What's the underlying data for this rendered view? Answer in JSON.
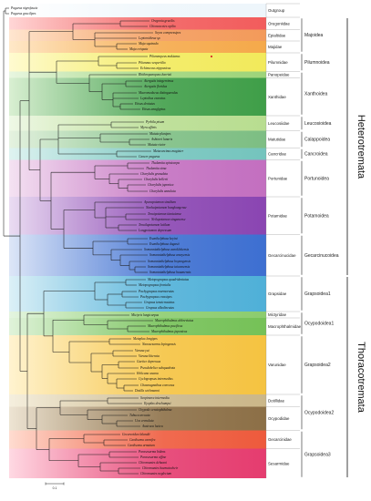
{
  "sections": [
    {
      "label": "Heterotremata"
    },
    {
      "label": "Thoracotremata"
    }
  ],
  "superfamilies": [
    {
      "label": "Majoidea"
    },
    {
      "label": "Pilumnoidea"
    },
    {
      "label": "Xanthoidea"
    },
    {
      "label": "Leucosioidea"
    },
    {
      "label": "Calappoidea"
    },
    {
      "label": "Cancroidea"
    },
    {
      "label": "Portunoidea"
    },
    {
      "label": "Potamoidea"
    },
    {
      "label": "Gecarcinucoidea"
    },
    {
      "label": "Grapsoidea1"
    },
    {
      "label": "Ocypodoidea1"
    },
    {
      "label": "Grapsoidea2"
    },
    {
      "label": "Ocypodoidea2"
    },
    {
      "label": "Grapsoidea3"
    }
  ],
  "families": [
    {
      "label": "Outgroup"
    },
    {
      "label": "Oregoniidae"
    },
    {
      "label": "Epialtidae"
    },
    {
      "label": "Majidae"
    },
    {
      "label": "Pilumnidae"
    },
    {
      "label": "Panopeidae"
    },
    {
      "label": "Xanthidae"
    },
    {
      "label": "Leucosiidae"
    },
    {
      "label": "Matutidae"
    },
    {
      "label": "Cancridae"
    },
    {
      "label": "Portunidae"
    },
    {
      "label": "Potamidae"
    },
    {
      "label": "Gecarcinucidae"
    },
    {
      "label": "Grapsidae"
    },
    {
      "label": "Mictyridae"
    },
    {
      "label": "Macrophthalmidae"
    },
    {
      "label": "Varunidae"
    },
    {
      "label": "Dotillidae"
    },
    {
      "label": "Ocypodidae"
    },
    {
      "label": "Gecarcinidae"
    },
    {
      "label": "Sesarmidae"
    }
  ],
  "taxa": [
    {
      "label": "Pagurus nigrofascia"
    },
    {
      "label": "Pagurus gracilipes"
    },
    {
      "label": "Oregonia gracilis"
    },
    {
      "label": "Chionoecetes opilio"
    },
    {
      "label": "Scyra compressipes"
    },
    {
      "label": "Leptomithrax sp."
    },
    {
      "label": "Maja squinado"
    },
    {
      "label": "Maja crispata"
    },
    {
      "label": "Pilumnopeus makianus"
    },
    {
      "label": "Pilumnus vespertilio"
    },
    {
      "label": "Echinoecus nipponicus"
    },
    {
      "label": "Rhithropanopeus harrisii"
    },
    {
      "label": "Atergatis integerrimus"
    },
    {
      "label": "Atergatis floridus"
    },
    {
      "label": "Macromedaeus distinguendus"
    },
    {
      "label": "Leptodius exaratus"
    },
    {
      "label": "Etisus dentatus"
    },
    {
      "label": "Etisus anaglyptus"
    },
    {
      "label": "Pyrhila pisum"
    },
    {
      "label": "Myra affinis"
    },
    {
      "label": "Matuta planipes"
    },
    {
      "label": "Ashtoret lunaris"
    },
    {
      "label": "Matuta victor"
    },
    {
      "label": "Metacarcinus magister"
    },
    {
      "label": "Cancer pagurus"
    },
    {
      "label": "Thalamita spinicarpa"
    },
    {
      "label": "Thalamita sima"
    },
    {
      "label": "Charybdis granulata"
    },
    {
      "label": "Charybdis bellerii"
    },
    {
      "label": "Charybdis japonica"
    },
    {
      "label": "Charybdis annulata"
    },
    {
      "label": "Aparapotamon similium"
    },
    {
      "label": "Nanhaipotamon hongkongense"
    },
    {
      "label": "Tenuipotamon tiantaiense"
    },
    {
      "label": "Neilupotamon xinganense"
    },
    {
      "label": "Tenuilapotamon latilum"
    },
    {
      "label": "Longpotamon depressum"
    },
    {
      "label": "Esanthelphusa keyini"
    },
    {
      "label": "Esanthelphusa dugasti"
    },
    {
      "label": "Somanniathelphusa zanoklokensis"
    },
    {
      "label": "Somanniathelphusa amoyensis"
    },
    {
      "label": "Somanniathelphusa boyangensis"
    },
    {
      "label": "Somanniathelphusa taiwanensis"
    },
    {
      "label": "Somanniathelphusa huaanensis"
    },
    {
      "label": "Metopograpsus quadridentatus"
    },
    {
      "label": "Metopograpsus frontalis"
    },
    {
      "label": "Pachygrapsus marmoratus"
    },
    {
      "label": "Pachygrapsus crassipes"
    },
    {
      "label": "Grapsus tenuicrustatus"
    },
    {
      "label": "Grapsus albolineatus"
    },
    {
      "label": "Mictyris longicarpus"
    },
    {
      "label": "Macrophthalmus abbreviatus"
    },
    {
      "label": "Macrophthalmus pacificus"
    },
    {
      "label": "Macrophthalmus japonicus"
    },
    {
      "label": "Metaplax longipes"
    },
    {
      "label": "Nanosesarma lepingensis"
    },
    {
      "label": "Varuna yui"
    },
    {
      "label": "Varuna litterata"
    },
    {
      "label": "Gaetice depressus"
    },
    {
      "label": "Pseudohelice subquadrata"
    },
    {
      "label": "Helicana wuana"
    },
    {
      "label": "Cyclograpsus intermedius"
    },
    {
      "label": "Chasmagnathus convexus"
    },
    {
      "label": "Dotilla wichmanni"
    },
    {
      "label": "Scopimera intermedia"
    },
    {
      "label": "Ilyoplax deschampsi"
    },
    {
      "label": "Ocypode ceratophthalma"
    },
    {
      "label": "Tubuca arcuata"
    },
    {
      "label": "Uca crenulata"
    },
    {
      "label": "Austruca lactea"
    },
    {
      "label": "Gecarcoidea lalandii"
    },
    {
      "label": "Cardisoma carnifex"
    },
    {
      "label": "Cardisoma armatum"
    },
    {
      "label": "Parasesarma bidens"
    },
    {
      "label": "Parasesarma affine"
    },
    {
      "label": "Chiromantes dehaani"
    },
    {
      "label": "Chiromantes haematocheir"
    },
    {
      "label": "Chiromantes neglectum"
    }
  ],
  "scale_bar": {
    "label": "0.1"
  }
}
